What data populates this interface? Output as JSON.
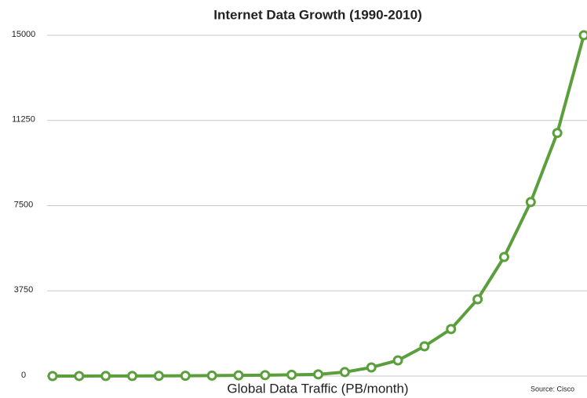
{
  "chart_data": {
    "type": "line",
    "title": "Internet Data Growth (1990-2010)",
    "x_label": "Global Data Traffic (PB/month)",
    "source": "Source: Cisco",
    "series": [
      {
        "name": "Global Data Traffic",
        "color": "#5b9f3d",
        "values": [
          1,
          2,
          3,
          5,
          8,
          12,
          20,
          30,
          40,
          55,
          75,
          175,
          380,
          690,
          1310,
          2070,
          3380,
          5240,
          7660,
          10700,
          15000
        ]
      }
    ],
    "ylim": [
      0,
      15000
    ],
    "yticks": [
      0,
      3750,
      7500,
      11250,
      15000
    ],
    "grid": true
  }
}
